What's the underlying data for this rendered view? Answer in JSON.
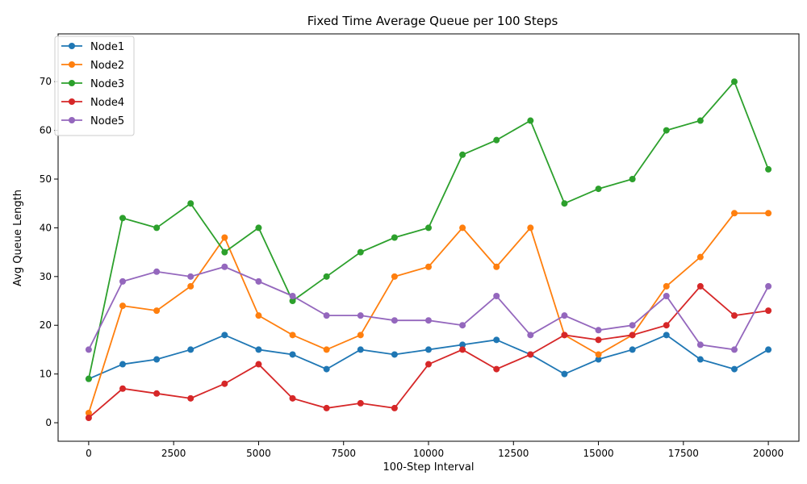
{
  "chart_data": {
    "type": "line",
    "title": "Fixed Time Average Queue per 100 Steps",
    "xlabel": "100-Step Interval",
    "ylabel": "Avg Queue Length",
    "xlim": [
      -900,
      20900
    ],
    "ylim": [
      -3.8,
      79.8
    ],
    "xticks": [
      0,
      2500,
      5000,
      7500,
      10000,
      12500,
      15000,
      17500,
      20000
    ],
    "yticks": [
      0,
      10,
      20,
      30,
      40,
      50,
      60,
      70
    ],
    "legend_position": "top-left",
    "grid": false,
    "series": [
      {
        "name": "Node1",
        "color": "#1f77b4",
        "x": [
          0,
          1000,
          2000,
          3000,
          4000,
          5000,
          6000,
          7000,
          8000,
          9000,
          10000,
          11000,
          12000,
          13000,
          14000,
          15000,
          16000,
          17000,
          18000,
          19000,
          20000
        ],
        "y": [
          9,
          12,
          13,
          15,
          18,
          15,
          14,
          11,
          15,
          14,
          15,
          16,
          17,
          14,
          10,
          13,
          15,
          18,
          13,
          11,
          15
        ]
      },
      {
        "name": "Node2",
        "color": "#ff7f0e",
        "x": [
          0,
          1000,
          2000,
          3000,
          4000,
          5000,
          6000,
          7000,
          8000,
          9000,
          10000,
          11000,
          12000,
          13000,
          14000,
          15000,
          16000,
          17000,
          18000,
          19000,
          20000
        ],
        "y": [
          2,
          24,
          23,
          28,
          38,
          22,
          18,
          15,
          18,
          30,
          32,
          40,
          32,
          40,
          18,
          14,
          18,
          28,
          34,
          43,
          43
        ]
      },
      {
        "name": "Node3",
        "color": "#2ca02c",
        "x": [
          0,
          1000,
          2000,
          3000,
          4000,
          5000,
          6000,
          7000,
          8000,
          9000,
          10000,
          11000,
          12000,
          13000,
          14000,
          15000,
          16000,
          17000,
          18000,
          19000,
          20000
        ],
        "y": [
          9,
          42,
          40,
          45,
          35,
          40,
          25,
          30,
          35,
          38,
          40,
          55,
          58,
          62,
          45,
          48,
          50,
          60,
          62,
          70,
          52
        ]
      },
      {
        "name": "Node4",
        "color": "#d62728",
        "x": [
          0,
          1000,
          2000,
          3000,
          4000,
          5000,
          6000,
          7000,
          8000,
          9000,
          10000,
          11000,
          12000,
          13000,
          14000,
          15000,
          16000,
          17000,
          18000,
          19000,
          20000
        ],
        "y": [
          1,
          7,
          6,
          5,
          8,
          12,
          5,
          3,
          4,
          3,
          12,
          15,
          11,
          14,
          18,
          17,
          18,
          20,
          28,
          22,
          23
        ]
      },
      {
        "name": "Node5",
        "color": "#9467bd",
        "x": [
          0,
          1000,
          2000,
          3000,
          4000,
          5000,
          6000,
          7000,
          8000,
          9000,
          10000,
          11000,
          12000,
          13000,
          14000,
          15000,
          16000,
          17000,
          18000,
          19000,
          20000
        ],
        "y": [
          15,
          29,
          31,
          30,
          32,
          29,
          26,
          22,
          22,
          21,
          21,
          20,
          26,
          18,
          22,
          19,
          20,
          26,
          16,
          15,
          28
        ]
      }
    ]
  }
}
